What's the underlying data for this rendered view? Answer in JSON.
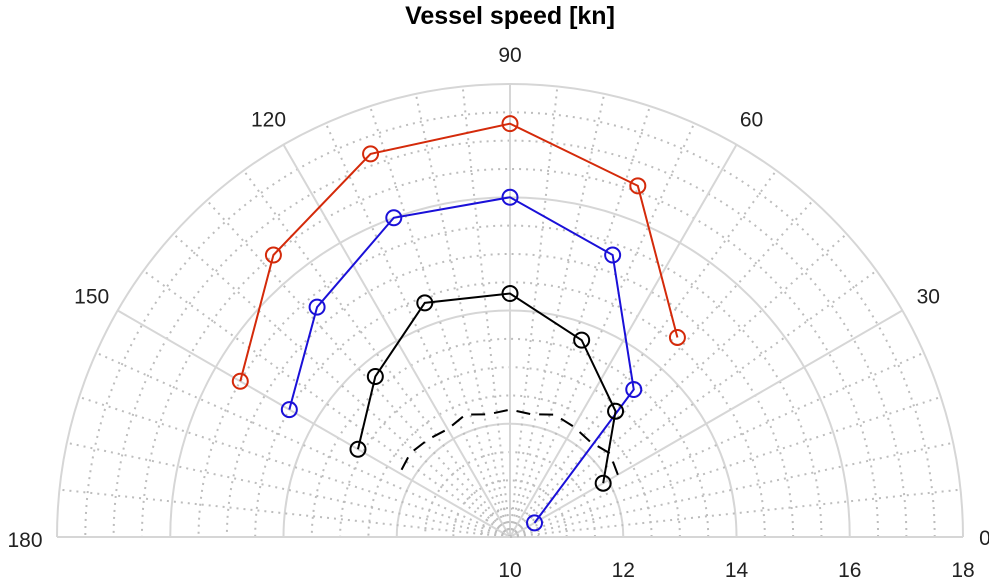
{
  "chart_data": {
    "type": "polar-line",
    "title": "Vessel speed [kn]",
    "angle_unit": "degrees",
    "angle_range": [
      0,
      180
    ],
    "angle_tick_labels": [
      "0",
      "30",
      "60",
      "90",
      "120",
      "150",
      "180"
    ],
    "angle_ticks": [
      0,
      30,
      60,
      90,
      120,
      150,
      180
    ],
    "radial_range": [
      10,
      18
    ],
    "radial_ticks": [
      10,
      12,
      14,
      16,
      18
    ],
    "radial_tick_labels": [
      "10",
      "12",
      "14",
      "16",
      "18"
    ],
    "grid": true,
    "series": [
      {
        "name": "red",
        "color": "#d42a0a",
        "marker": "circle",
        "style": "solid",
        "angles": [
          50,
          70,
          90,
          110,
          130,
          150
        ],
        "values": [
          14.6,
          16.6,
          17.3,
          17.2,
          16.5,
          15.5
        ]
      },
      {
        "name": "blue",
        "color": "#1a10d8",
        "marker": "circle",
        "style": "solid",
        "angles": [
          30,
          50,
          70,
          90,
          110,
          130,
          150
        ],
        "values": [
          10.5,
          13.4,
          15.3,
          16.0,
          16.0,
          15.3,
          14.5
        ]
      },
      {
        "name": "black",
        "color": "#000000",
        "marker": "circle",
        "style": "solid",
        "angles": [
          30,
          50,
          70,
          90,
          110,
          130,
          150
        ],
        "values": [
          11.9,
          12.9,
          13.7,
          14.3,
          14.4,
          13.7,
          13.1
        ]
      },
      {
        "name": "dashed",
        "color": "#000000",
        "marker": "none",
        "style": "dashed",
        "angles": [
          30,
          40,
          50,
          60,
          70,
          80,
          90,
          100,
          110,
          120,
          130,
          140,
          150
        ],
        "values": [
          12.2,
          12.3,
          12.2,
          12.25,
          12.3,
          12.2,
          12.25,
          12.2,
          12.3,
          12.2,
          12.25,
          12.3,
          12.25
        ]
      }
    ]
  }
}
